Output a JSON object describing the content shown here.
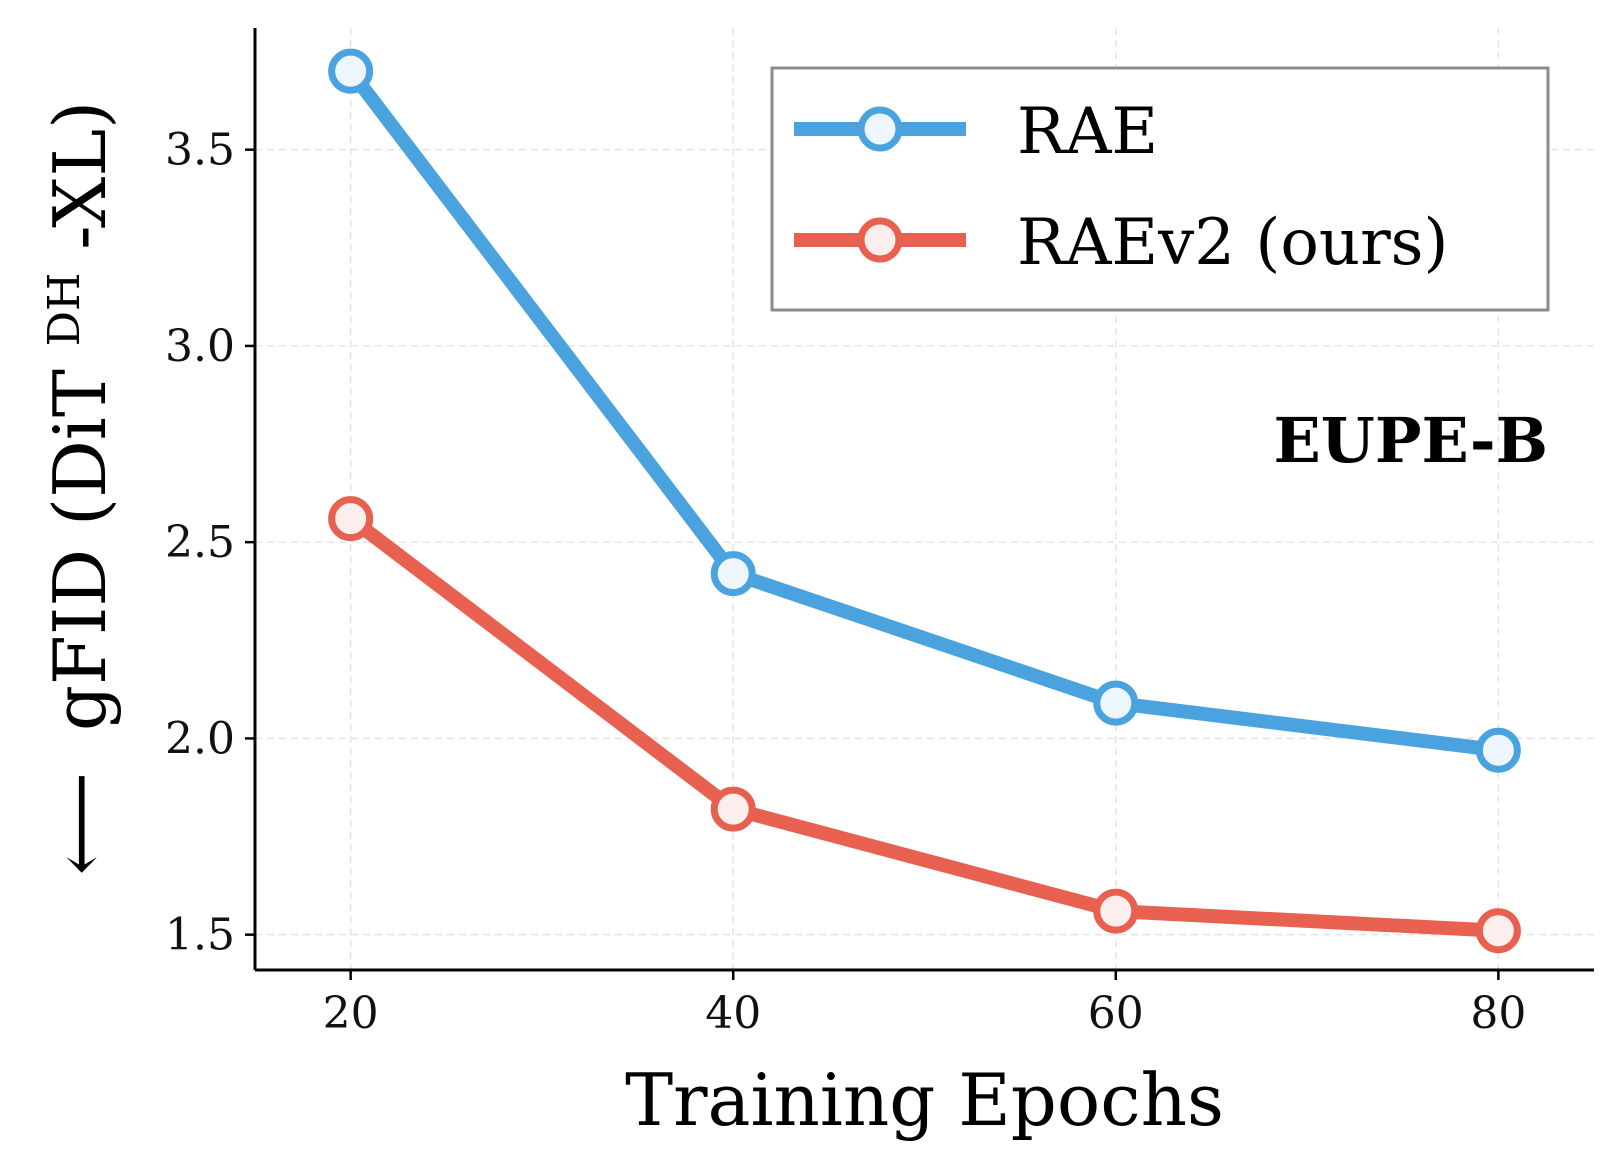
{
  "chart_data": {
    "type": "line",
    "x": [
      20,
      40,
      60,
      80
    ],
    "xlabel": "Training Epochs",
    "ylabel": {
      "arrow": "⟵",
      "prefix": "gFID (DiT",
      "superscript": "DH",
      "suffix": "-XL)"
    },
    "xlim": [
      15,
      85
    ],
    "ylim": [
      1.41,
      3.81
    ],
    "xticks": [
      20,
      40,
      60,
      80
    ],
    "yticks": [
      1.5,
      2.0,
      2.5,
      3.0,
      3.5
    ],
    "ytick_labels": [
      "1.5",
      "2.0",
      "2.5",
      "3.0",
      "3.5"
    ],
    "xtick_labels": [
      "20",
      "40",
      "60",
      "80"
    ],
    "grid": true,
    "legend_position": "top-right",
    "annotation": "EUPE-B",
    "series": [
      {
        "name": "RAE",
        "values": [
          3.7,
          2.42,
          2.09,
          1.97
        ],
        "color": "#4aa3df",
        "marker_fill": "#eef6fd"
      },
      {
        "name": "RAEv2 (ours)",
        "values": [
          2.56,
          1.82,
          1.56,
          1.51
        ],
        "color": "#e8604f",
        "marker_fill": "#fdeeee"
      }
    ]
  }
}
